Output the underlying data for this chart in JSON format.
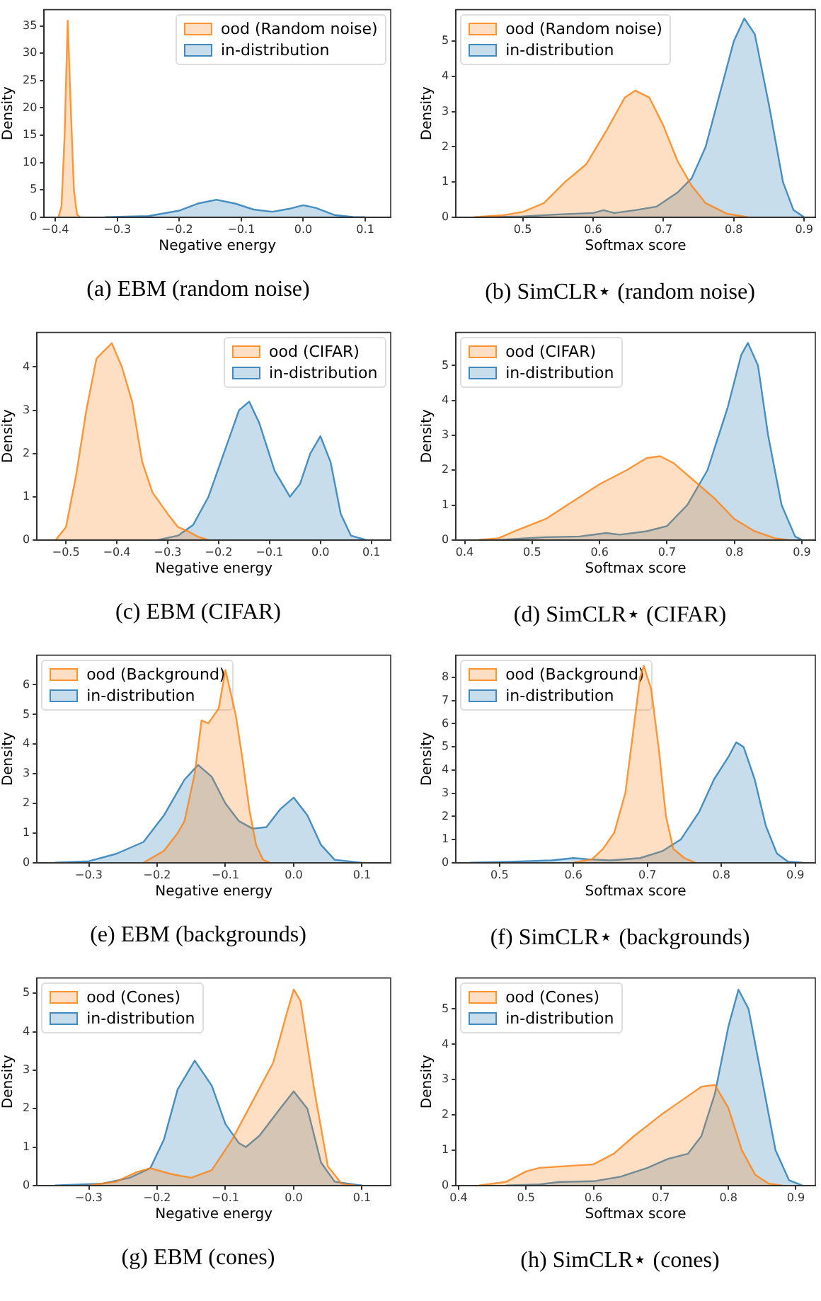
{
  "chart_data": [
    {
      "type": "area",
      "title": "(a) EBM (random noise)",
      "xlabel": "Negative energy",
      "ylabel": "Density",
      "legend": "top right",
      "xlim": [
        -0.418,
        0.141
      ],
      "ylim": [
        0,
        38
      ],
      "xticks": [
        {
          "value": -0.4,
          "label": "−0.4"
        },
        {
          "value": -0.3,
          "label": "−0.3"
        },
        {
          "value": -0.2,
          "label": "−0.2"
        },
        {
          "value": -0.1,
          "label": "−0.1"
        },
        {
          "value": 0,
          "label": "0.0"
        },
        {
          "value": 0.1,
          "label": "0.1"
        }
      ],
      "yticks": [
        0,
        5,
        10,
        15,
        20,
        25,
        30,
        35
      ],
      "series": [
        {
          "name": "ood (Random noise)",
          "color": "#ff7f0e",
          "x": [
            -0.395,
            -0.39,
            -0.385,
            -0.38,
            -0.375,
            -0.37,
            -0.365,
            -0.36
          ],
          "values": [
            0,
            2,
            15,
            36,
            20,
            5,
            0.5,
            0
          ]
        },
        {
          "name": "in-distribution",
          "color": "#1f77b4",
          "x": [
            -0.32,
            -0.25,
            -0.2,
            -0.17,
            -0.14,
            -0.11,
            -0.08,
            -0.05,
            -0.02,
            0,
            0.02,
            0.05,
            0.08,
            0.1
          ],
          "values": [
            0,
            0.2,
            1.2,
            2.5,
            3.2,
            2.5,
            1.4,
            1.0,
            1.6,
            2.2,
            1.7,
            0.4,
            0.05,
            0
          ]
        }
      ]
    },
    {
      "type": "area",
      "title": "(b) SimCLR⋆ (random noise)",
      "xlabel": "Softmax score",
      "ylabel": "Density",
      "legend": "top left",
      "xlim": [
        0.405,
        0.916
      ],
      "ylim": [
        0,
        5.9
      ],
      "xticks": [
        0.5,
        0.6,
        0.7,
        0.8,
        0.9
      ],
      "yticks": [
        0,
        1,
        2,
        3,
        4,
        5
      ],
      "series": [
        {
          "name": "ood (Random noise)",
          "color": "#ff7f0e",
          "x": [
            0.43,
            0.47,
            0.5,
            0.53,
            0.56,
            0.59,
            0.62,
            0.645,
            0.66,
            0.68,
            0.7,
            0.72,
            0.74,
            0.76,
            0.79,
            0.82
          ],
          "values": [
            0,
            0.05,
            0.15,
            0.4,
            1.0,
            1.5,
            2.5,
            3.4,
            3.6,
            3.4,
            2.6,
            1.6,
            0.9,
            0.4,
            0.1,
            0
          ]
        },
        {
          "name": "in-distribution",
          "color": "#1f77b4",
          "x": [
            0.44,
            0.5,
            0.55,
            0.6,
            0.615,
            0.63,
            0.66,
            0.69,
            0.72,
            0.74,
            0.76,
            0.78,
            0.8,
            0.815,
            0.83,
            0.85,
            0.87,
            0.885,
            0.9
          ],
          "values": [
            0,
            0.02,
            0.08,
            0.12,
            0.2,
            0.12,
            0.2,
            0.3,
            0.7,
            1.1,
            2.0,
            3.5,
            5.0,
            5.65,
            5.2,
            3.2,
            1.0,
            0.2,
            0
          ]
        }
      ]
    },
    {
      "type": "area",
      "title": "(c) EBM (CIFAR)",
      "xlabel": "Negative energy",
      "ylabel": "Density",
      "legend": "top right",
      "xlim": [
        -0.557,
        0.138
      ],
      "ylim": [
        0,
        4.8
      ],
      "xticks": [
        {
          "value": -0.5,
          "label": "−0.5"
        },
        {
          "value": -0.4,
          "label": "−0.4"
        },
        {
          "value": -0.3,
          "label": "−0.3"
        },
        {
          "value": -0.2,
          "label": "−0.2"
        },
        {
          "value": -0.1,
          "label": "−0.1"
        },
        {
          "value": 0,
          "label": "0.0"
        },
        {
          "value": 0.1,
          "label": "0.1"
        }
      ],
      "yticks": [
        0,
        1,
        2,
        3,
        4
      ],
      "series": [
        {
          "name": "ood (CIFAR)",
          "color": "#ff7f0e",
          "x": [
            -0.52,
            -0.5,
            -0.48,
            -0.46,
            -0.44,
            -0.41,
            -0.39,
            -0.37,
            -0.35,
            -0.33,
            -0.3,
            -0.28,
            -0.26,
            -0.24,
            -0.22
          ],
          "values": [
            0,
            0.3,
            1.5,
            3.0,
            4.2,
            4.55,
            4.0,
            3.2,
            1.8,
            1.1,
            0.6,
            0.3,
            0.2,
            0.07,
            0
          ]
        },
        {
          "name": "in-distribution",
          "color": "#1f77b4",
          "x": [
            -0.32,
            -0.28,
            -0.25,
            -0.22,
            -0.19,
            -0.16,
            -0.14,
            -0.12,
            -0.09,
            -0.06,
            -0.04,
            -0.02,
            0,
            0.02,
            0.04,
            0.06,
            0.09
          ],
          "values": [
            0,
            0.1,
            0.35,
            1.0,
            2.0,
            3.0,
            3.2,
            2.7,
            1.6,
            1.0,
            1.3,
            2.0,
            2.4,
            1.8,
            0.6,
            0.1,
            0
          ]
        }
      ]
    },
    {
      "type": "area",
      "title": "(d) SimCLR⋆ (CIFAR)",
      "xlabel": "Softmax score",
      "ylabel": "Density",
      "legend": "top left",
      "xlim": [
        0.387,
        0.92
      ],
      "ylim": [
        0,
        5.95
      ],
      "xticks": [
        0.4,
        0.5,
        0.6,
        0.7,
        0.8,
        0.9
      ],
      "yticks": [
        0,
        1,
        2,
        3,
        4,
        5
      ],
      "series": [
        {
          "name": "ood (CIFAR)",
          "color": "#ff7f0e",
          "x": [
            0.42,
            0.45,
            0.48,
            0.52,
            0.56,
            0.6,
            0.64,
            0.67,
            0.69,
            0.71,
            0.74,
            0.77,
            0.8,
            0.83,
            0.86,
            0.88
          ],
          "values": [
            0,
            0.05,
            0.3,
            0.6,
            1.1,
            1.6,
            2.0,
            2.35,
            2.4,
            2.2,
            1.7,
            1.2,
            0.6,
            0.25,
            0.05,
            0
          ]
        },
        {
          "name": "in-distribution",
          "color": "#1f77b4",
          "x": [
            0.45,
            0.52,
            0.57,
            0.61,
            0.63,
            0.67,
            0.7,
            0.73,
            0.76,
            0.79,
            0.81,
            0.82,
            0.835,
            0.85,
            0.87,
            0.89,
            0.9
          ],
          "values": [
            0,
            0.08,
            0.1,
            0.2,
            0.15,
            0.25,
            0.4,
            1.0,
            2.0,
            3.8,
            5.3,
            5.65,
            5.0,
            3.0,
            1.0,
            0.1,
            0
          ]
        }
      ]
    },
    {
      "type": "area",
      "title": "(e) EBM (backgrounds)",
      "xlabel": "Negative energy",
      "ylabel": "Density",
      "legend": "top left",
      "xlim": [
        -0.376,
        0.142
      ],
      "ylim": [
        0,
        7
      ],
      "xticks": [
        {
          "value": -0.3,
          "label": "−0.3"
        },
        {
          "value": -0.2,
          "label": "−0.2"
        },
        {
          "value": -0.1,
          "label": "−0.1"
        },
        {
          "value": 0,
          "label": "0.0"
        },
        {
          "value": 0.1,
          "label": "0.1"
        }
      ],
      "yticks": [
        0,
        1,
        2,
        3,
        4,
        5,
        6
      ],
      "series": [
        {
          "name": "ood (Background)",
          "color": "#ff7f0e",
          "x": [
            -0.22,
            -0.19,
            -0.17,
            -0.16,
            -0.145,
            -0.135,
            -0.125,
            -0.11,
            -0.1,
            -0.085,
            -0.075,
            -0.065,
            -0.055,
            -0.045,
            -0.035
          ],
          "values": [
            0,
            0.4,
            1.0,
            1.4,
            3.0,
            4.8,
            4.7,
            5.2,
            6.5,
            5.0,
            3.5,
            1.8,
            0.6,
            0.1,
            0
          ]
        },
        {
          "name": "in-distribution",
          "color": "#1f77b4",
          "x": [
            -0.35,
            -0.3,
            -0.26,
            -0.22,
            -0.19,
            -0.16,
            -0.14,
            -0.12,
            -0.1,
            -0.08,
            -0.06,
            -0.04,
            -0.02,
            0,
            0.02,
            0.04,
            0.06,
            0.1
          ],
          "values": [
            0,
            0.05,
            0.3,
            0.7,
            1.6,
            2.8,
            3.3,
            2.9,
            2.0,
            1.4,
            1.15,
            1.2,
            1.8,
            2.2,
            1.6,
            0.6,
            0.1,
            0
          ]
        }
      ]
    },
    {
      "type": "area",
      "title": "(f) SimCLR⋆ (backgrounds)",
      "xlabel": "Softmax score",
      "ylabel": "Density",
      "legend": "top left",
      "xlim": [
        0.441,
        0.927
      ],
      "ylim": [
        0,
        8.96
      ],
      "xticks": [
        0.5,
        0.6,
        0.7,
        0.8,
        0.9
      ],
      "yticks": [
        0,
        1,
        2,
        3,
        4,
        5,
        6,
        7,
        8
      ],
      "series": [
        {
          "name": "ood (Background)",
          "color": "#ff7f0e",
          "x": [
            0.6,
            0.625,
            0.64,
            0.655,
            0.67,
            0.68,
            0.69,
            0.695,
            0.705,
            0.715,
            0.725,
            0.735,
            0.75,
            0.765
          ],
          "values": [
            0,
            0.15,
            0.6,
            1.3,
            3.0,
            5.5,
            8.0,
            8.5,
            7.5,
            5.0,
            2.0,
            0.6,
            0.2,
            0
          ]
        },
        {
          "name": "in-distribution",
          "color": "#1f77b4",
          "x": [
            0.46,
            0.52,
            0.57,
            0.6,
            0.62,
            0.65,
            0.69,
            0.72,
            0.745,
            0.77,
            0.79,
            0.81,
            0.82,
            0.83,
            0.845,
            0.86,
            0.875,
            0.89,
            0.91
          ],
          "values": [
            0,
            0.05,
            0.1,
            0.2,
            0.15,
            0.1,
            0.2,
            0.5,
            1.0,
            2.2,
            3.6,
            4.6,
            5.2,
            5.0,
            3.6,
            1.6,
            0.4,
            0.05,
            0
          ]
        }
      ]
    },
    {
      "type": "area",
      "title": "(g) EBM (cones)",
      "xlabel": "Negative energy",
      "ylabel": "Density",
      "legend": "top left",
      "xlim": [
        -0.376,
        0.142
      ],
      "ylim": [
        0,
        5.4
      ],
      "xticks": [
        {
          "value": -0.3,
          "label": "−0.3"
        },
        {
          "value": -0.2,
          "label": "−0.2"
        },
        {
          "value": -0.1,
          "label": "−0.1"
        },
        {
          "value": 0,
          "label": "0.0"
        },
        {
          "value": 0.1,
          "label": "0.1"
        }
      ],
      "yticks": [
        0,
        1,
        2,
        3,
        4,
        5
      ],
      "series": [
        {
          "name": "ood (Cones)",
          "color": "#ff7f0e",
          "x": [
            -0.3,
            -0.26,
            -0.23,
            -0.21,
            -0.18,
            -0.15,
            -0.12,
            -0.09,
            -0.06,
            -0.03,
            -0.01,
            0,
            0.01,
            0.03,
            0.05,
            0.07,
            0.09
          ],
          "values": [
            0,
            0.1,
            0.35,
            0.45,
            0.3,
            0.2,
            0.4,
            1.2,
            2.2,
            3.2,
            4.5,
            5.1,
            4.8,
            2.5,
            0.5,
            0.05,
            0
          ]
        },
        {
          "name": "in-distribution",
          "color": "#1f77b4",
          "x": [
            -0.35,
            -0.28,
            -0.24,
            -0.21,
            -0.19,
            -0.17,
            -0.145,
            -0.12,
            -0.1,
            -0.08,
            -0.07,
            -0.05,
            -0.02,
            0,
            0.02,
            0.04,
            0.06,
            0.1
          ],
          "values": [
            0,
            0.05,
            0.2,
            0.45,
            1.2,
            2.5,
            3.25,
            2.6,
            1.6,
            1.1,
            1.0,
            1.3,
            2.0,
            2.45,
            2.0,
            0.6,
            0.1,
            0
          ]
        }
      ]
    },
    {
      "type": "area",
      "title": "(h) SimCLR⋆ (cones)",
      "xlabel": "Softmax score",
      "ylabel": "Density",
      "legend": "top left",
      "xlim": [
        0.396,
        0.929
      ],
      "ylim": [
        0,
        5.88
      ],
      "xticks": [
        0.4,
        0.5,
        0.6,
        0.7,
        0.8,
        0.9
      ],
      "yticks": [
        0,
        1,
        2,
        3,
        4,
        5
      ],
      "series": [
        {
          "name": "ood (Cones)",
          "color": "#ff7f0e",
          "x": [
            0.43,
            0.47,
            0.5,
            0.52,
            0.56,
            0.6,
            0.63,
            0.66,
            0.7,
            0.73,
            0.76,
            0.78,
            0.8,
            0.82,
            0.84,
            0.86,
            0.88
          ],
          "values": [
            0,
            0.1,
            0.4,
            0.5,
            0.55,
            0.6,
            0.9,
            1.4,
            2.0,
            2.4,
            2.8,
            2.85,
            2.2,
            1.0,
            0.3,
            0.05,
            0
          ]
        },
        {
          "name": "in-distribution",
          "color": "#1f77b4",
          "x": [
            0.47,
            0.52,
            0.55,
            0.6,
            0.64,
            0.68,
            0.71,
            0.74,
            0.76,
            0.78,
            0.8,
            0.815,
            0.83,
            0.85,
            0.87,
            0.89,
            0.91
          ],
          "values": [
            0,
            0.03,
            0.1,
            0.12,
            0.25,
            0.5,
            0.75,
            0.9,
            1.4,
            2.6,
            4.5,
            5.55,
            5.0,
            3.0,
            1.0,
            0.15,
            0
          ]
        }
      ]
    }
  ]
}
